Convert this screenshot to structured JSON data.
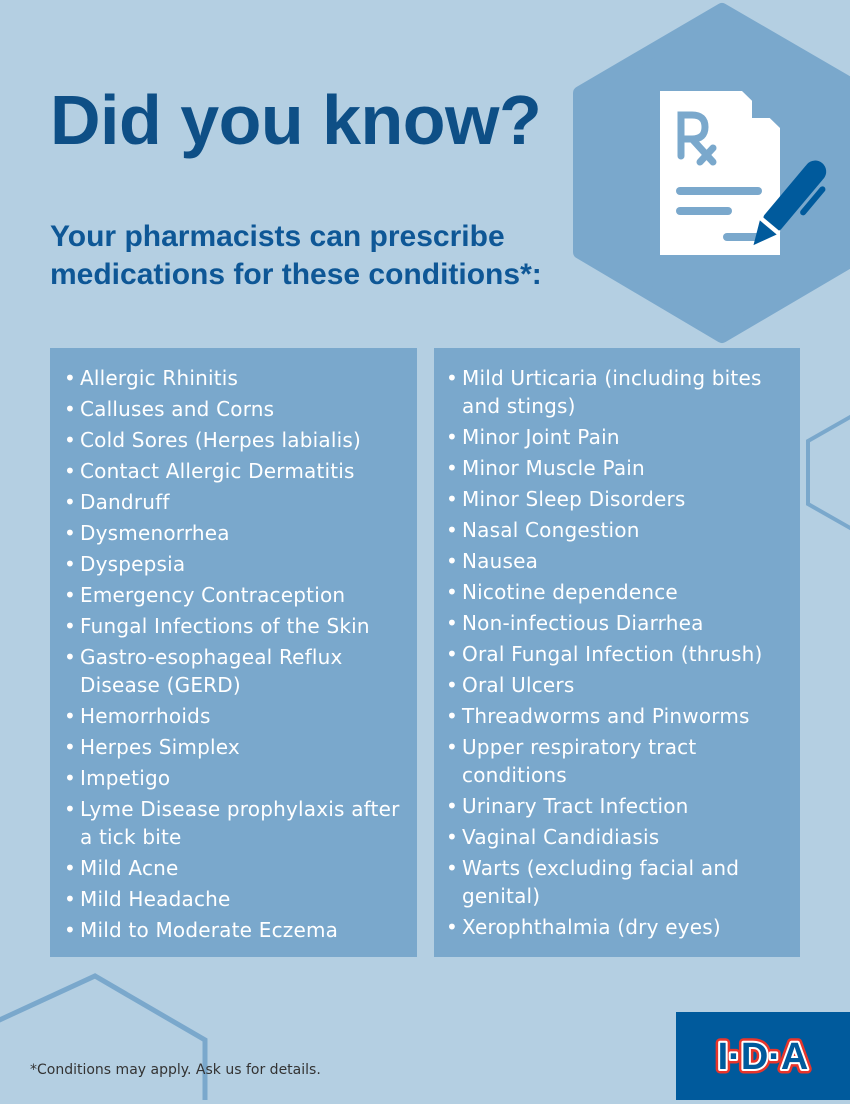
{
  "title": "Did you know?",
  "subtitle": "Your pharmacists can prescribe medications for these conditions*:",
  "icon": "prescription-document-pen-icon",
  "colors": {
    "background": "#b4cfe2",
    "panel": "#7aa8cc",
    "title": "#0e4f86",
    "logo_bg": "#005a9c",
    "logo_red": "#e8352b"
  },
  "left_list": [
    "Allergic Rhinitis",
    "Calluses and Corns",
    "Cold Sores (Herpes labialis)",
    "Contact Allergic Dermatitis",
    "Dandruff",
    "Dysmenorrhea",
    "Dyspepsia",
    "Emergency Contraception",
    "Fungal Infections of the Skin",
    "Gastro-esophageal Reflux Disease (GERD)",
    "Hemorrhoids",
    "Herpes Simplex",
    "Impetigo",
    "Lyme Disease prophylaxis after a tick bite",
    "Mild Acne",
    "Mild Headache",
    "Mild to Moderate Eczema"
  ],
  "right_list": [
    "Mild Urticaria (including bites and stings)",
    "Minor Joint Pain",
    "Minor Muscle Pain",
    "Minor Sleep Disorders",
    "Nasal Congestion",
    "Nausea",
    "Nicotine dependence",
    "Non-infectious Diarrhea",
    "Oral Fungal Infection (thrush)",
    "Oral Ulcers",
    "Threadworms and Pinworms",
    "Upper respiratory tract conditions",
    "Urinary Tract Infection",
    "Vaginal Candidiasis",
    "Warts (excluding facial and genital)",
    "Xerophthalmia (dry eyes)"
  ],
  "footnote": "*Conditions may apply. Ask us for details.",
  "logo_text": "I·D·A"
}
